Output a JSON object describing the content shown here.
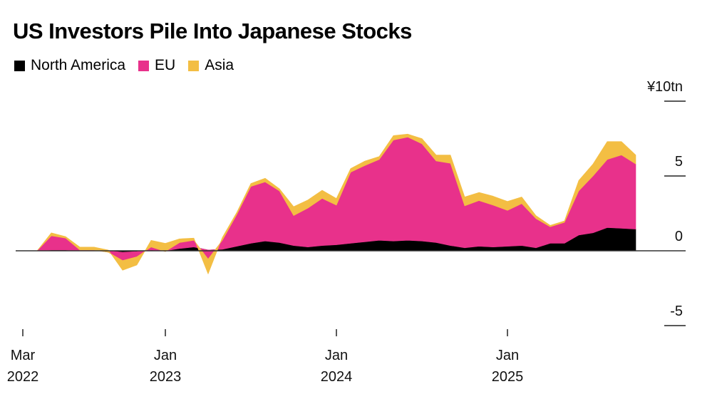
{
  "chart_data": {
    "type": "area",
    "stacked": true,
    "title": "US Investors Pile Into Japanese Stocks",
    "y_unit_label": "¥10tn",
    "ylim": [
      -5,
      10
    ],
    "y_ticks": [
      10,
      5,
      0,
      -5
    ],
    "y_tick_labels": [
      "¥10tn",
      "5",
      "0",
      "-5"
    ],
    "grid": false,
    "legend_placement": "top-left",
    "x_start": "2022-04",
    "x_step": "month",
    "x_ticks": [
      {
        "date": "2022-03",
        "line1": "Mar",
        "line2": "2022"
      },
      {
        "date": "2023-01",
        "line1": "Jan",
        "line2": "2023"
      },
      {
        "date": "2024-01",
        "line1": "Jan",
        "line2": "2024"
      },
      {
        "date": "2025-01",
        "line1": "Jan",
        "line2": "2025"
      }
    ],
    "series": [
      {
        "name": "North America",
        "color": "#000000",
        "values": [
          0,
          0.05,
          0.05,
          0,
          0,
          0,
          -0.1,
          -0.05,
          0.05,
          0,
          0.15,
          0.25,
          0.05,
          0.1,
          0.3,
          0.5,
          0.65,
          0.55,
          0.35,
          0.25,
          0.35,
          0.4,
          0.5,
          0.6,
          0.7,
          0.65,
          0.7,
          0.65,
          0.55,
          0.35,
          0.2,
          0.3,
          0.25,
          0.3,
          0.35,
          0.2,
          0.5,
          0.5,
          1.05,
          1.2,
          1.55,
          1.5,
          1.45
        ]
      },
      {
        "name": "EU",
        "color": "#e8318b",
        "values": [
          0,
          0.95,
          0.8,
          0.05,
          0.05,
          -0.1,
          -0.55,
          -0.35,
          0.2,
          -0.05,
          0.4,
          0.45,
          -0.6,
          0.6,
          2.1,
          3.8,
          3.95,
          3.45,
          2.0,
          2.6,
          3.15,
          2.65,
          4.75,
          5.1,
          5.4,
          6.75,
          6.9,
          6.5,
          5.45,
          5.5,
          2.8,
          3.05,
          2.8,
          2.4,
          2.8,
          1.95,
          1.1,
          1.4,
          2.95,
          3.8,
          4.55,
          4.9,
          4.35
        ]
      },
      {
        "name": "Asia",
        "color": "#f3be43",
        "values": [
          0,
          0.2,
          0.1,
          0.2,
          0.2,
          0.15,
          -0.65,
          -0.55,
          0.45,
          0.55,
          0.25,
          0.15,
          -1.0,
          0.2,
          0.15,
          0.2,
          0.25,
          0.15,
          0.6,
          0.55,
          0.55,
          0.45,
          0.25,
          0.3,
          0.2,
          0.3,
          0.2,
          0.35,
          0.4,
          0.55,
          0.6,
          0.55,
          0.6,
          0.6,
          0.45,
          0.2,
          0.1,
          0.1,
          0.7,
          0.8,
          1.2,
          0.9,
          0.6
        ]
      }
    ]
  }
}
